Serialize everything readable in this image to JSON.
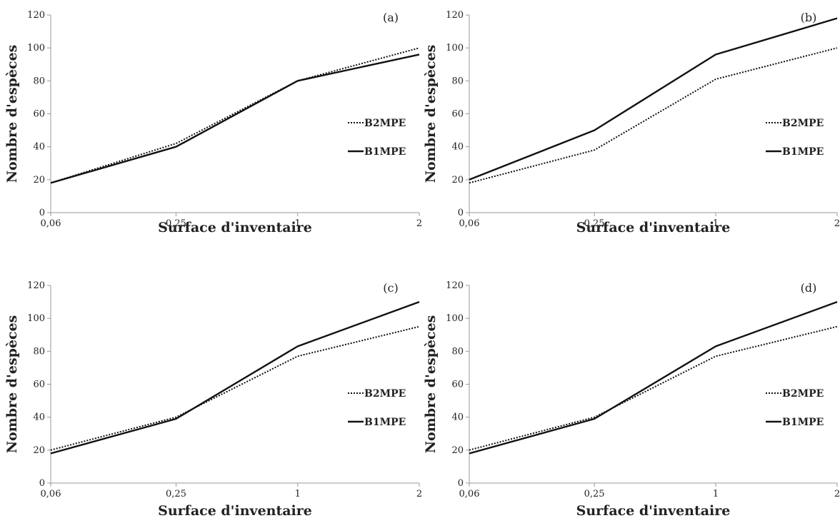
{
  "chart_data": [
    {
      "type": "line",
      "panel_label": "(a)",
      "x_categories": [
        "0,06",
        "0,25",
        "1",
        "2"
      ],
      "xlabel": "Surface d'inventaire",
      "ylabel": "Nombre d'espèces",
      "ylim": [
        0,
        120
      ],
      "yticks": [
        "0",
        "20",
        "40",
        "60",
        "80",
        "100",
        "120"
      ],
      "grid": false,
      "legend_position": "right",
      "series": [
        {
          "name": "B2MPE",
          "style": "dotted",
          "values": [
            18,
            42,
            80,
            100
          ]
        },
        {
          "name": "B1MPE",
          "style": "solid",
          "values": [
            18,
            40,
            80,
            96
          ]
        }
      ]
    },
    {
      "type": "line",
      "panel_label": "(b)",
      "x_categories": [
        "0,06",
        "0,25",
        "1",
        "2"
      ],
      "xlabel": "Surface d'inventaire",
      "ylabel": "Nombre d'espèces",
      "ylim": [
        0,
        120
      ],
      "yticks": [
        "0",
        "20",
        "40",
        "60",
        "80",
        "100",
        "120"
      ],
      "grid": false,
      "legend_position": "right",
      "series": [
        {
          "name": "B2MPE",
          "style": "dotted",
          "values": [
            18,
            38,
            81,
            100
          ]
        },
        {
          "name": "B1MPE",
          "style": "solid",
          "values": [
            20,
            50,
            96,
            118
          ]
        }
      ]
    },
    {
      "type": "line",
      "panel_label": "(c)",
      "x_categories": [
        "0,06",
        "0,25",
        "1",
        "2"
      ],
      "xlabel": "Surface d'inventaire",
      "ylabel": "Nombre d'espèces",
      "ylim": [
        0,
        120
      ],
      "yticks": [
        "0",
        "20",
        "40",
        "60",
        "80",
        "100",
        "120"
      ],
      "grid": false,
      "legend_position": "right",
      "series": [
        {
          "name": "B2MPE",
          "style": "dotted",
          "values": [
            20,
            40,
            77,
            95
          ]
        },
        {
          "name": "B1MPE",
          "style": "solid",
          "values": [
            18,
            39,
            83,
            110
          ]
        }
      ]
    },
    {
      "type": "line",
      "panel_label": "(d)",
      "x_categories": [
        "0,06",
        "0,25",
        "1",
        "2"
      ],
      "xlabel": "Surface d'inventaire",
      "ylabel": "Nombre d'espèces",
      "ylim": [
        0,
        120
      ],
      "yticks": [
        "0",
        "20",
        "40",
        "60",
        "80",
        "100",
        "120"
      ],
      "grid": false,
      "legend_position": "right",
      "series": [
        {
          "name": "B2MPE",
          "style": "dotted",
          "values": [
            20,
            40,
            77,
            95
          ]
        },
        {
          "name": "B1MPE",
          "style": "solid",
          "values": [
            18,
            39,
            83,
            110
          ]
        }
      ]
    }
  ]
}
